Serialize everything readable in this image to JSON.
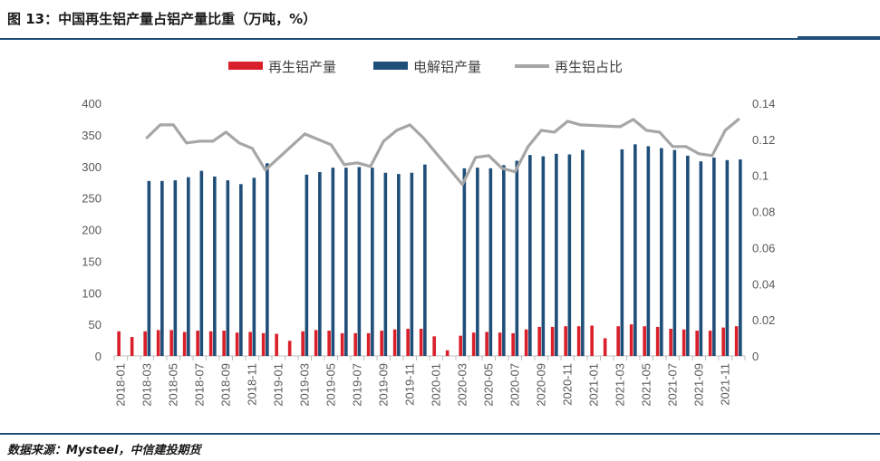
{
  "title": "图 13：中国再生铝产量占铝产量比重（万吨，%）",
  "source": "数据来源：Mysteel，中信建投期货",
  "colors": {
    "recycled": "#d9202a",
    "electrolytic": "#1f4e79",
    "ratio": "#a6a6a6",
    "rule": "#1f4e79"
  },
  "chart_data": {
    "type": "bar+line",
    "categories": [
      "2018-01",
      "2018-02",
      "2018-03",
      "2018-04",
      "2018-05",
      "2018-06",
      "2018-07",
      "2018-08",
      "2018-09",
      "2018-10",
      "2018-11",
      "2018-12",
      "2019-01",
      "2019-02",
      "2019-03",
      "2019-04",
      "2019-05",
      "2019-06",
      "2019-07",
      "2019-08",
      "2019-09",
      "2019-10",
      "2019-11",
      "2019-12",
      "2020-01",
      "2020-02",
      "2020-03",
      "2020-04",
      "2020-05",
      "2020-06",
      "2020-07",
      "2020-08",
      "2020-09",
      "2020-10",
      "2020-11",
      "2020-12",
      "2021-01",
      "2021-02",
      "2021-03",
      "2021-04",
      "2021-05",
      "2021-06",
      "2021-07",
      "2021-08",
      "2021-09",
      "2021-10",
      "2021-11",
      "2021-12"
    ],
    "tick_labels": [
      "2018-01",
      "2018-03",
      "2018-05",
      "2018-07",
      "2018-09",
      "2018-11",
      "2019-01",
      "2019-03",
      "2019-05",
      "2019-07",
      "2019-09",
      "2019-11",
      "2020-01",
      "2020-03",
      "2020-05",
      "2020-07",
      "2020-09",
      "2020-11",
      "2021-01",
      "2021-03",
      "2021-05",
      "2021-07",
      "2021-09",
      "2021-11"
    ],
    "series": [
      {
        "name": "再生铝产量",
        "axis": "left",
        "kind": "bar",
        "values": [
          39,
          30,
          39,
          41,
          41,
          38,
          40,
          39,
          40,
          37,
          38,
          36,
          35,
          24,
          39,
          41,
          40,
          36,
          36,
          36,
          40,
          42,
          43,
          43,
          31,
          9,
          32,
          37,
          38,
          37,
          36,
          42,
          46,
          46,
          47,
          47,
          48,
          28,
          47,
          50,
          47,
          46,
          43,
          42,
          40,
          40,
          45,
          47
        ]
      },
      {
        "name": "电解铝产量",
        "axis": "left",
        "kind": "bar",
        "values": [
          null,
          null,
          277,
          277,
          278,
          283,
          293,
          284,
          278,
          272,
          282,
          305,
          null,
          null,
          287,
          291,
          298,
          298,
          299,
          298,
          290,
          288,
          290,
          303,
          null,
          null,
          297,
          298,
          297,
          302,
          309,
          318,
          316,
          320,
          319,
          326,
          null,
          null,
          327,
          335,
          332,
          329,
          326,
          317,
          308,
          314,
          310,
          311
        ]
      },
      {
        "name": "再生铝占比",
        "axis": "right",
        "kind": "line",
        "values": [
          null,
          null,
          0.121,
          0.128,
          0.128,
          0.118,
          0.119,
          0.119,
          0.124,
          0.118,
          0.115,
          0.103,
          null,
          null,
          0.123,
          null,
          0.117,
          0.106,
          0.107,
          0.105,
          0.119,
          0.125,
          0.128,
          0.121,
          null,
          null,
          0.095,
          0.11,
          0.111,
          0.104,
          0.102,
          0.116,
          0.125,
          0.124,
          0.13,
          0.128,
          null,
          null,
          0.127,
          0.131,
          0.125,
          0.124,
          0.116,
          0.116,
          0.112,
          0.111,
          0.125,
          0.131
        ]
      }
    ],
    "left_axis": {
      "min": 0,
      "max": 400,
      "ticks": [
        "0",
        "50",
        "100",
        "150",
        "200",
        "250",
        "300",
        "350",
        "400"
      ]
    },
    "right_axis": {
      "min": 0,
      "max": 0.14,
      "ticks": [
        "0",
        "0.02",
        "0.04",
        "0.06",
        "0.08",
        "0.1",
        "0.12",
        "0.14"
      ]
    },
    "legend": [
      "再生铝产量",
      "电解铝产量",
      "再生铝占比"
    ],
    "legend_position": "top-center",
    "grid": false
  }
}
